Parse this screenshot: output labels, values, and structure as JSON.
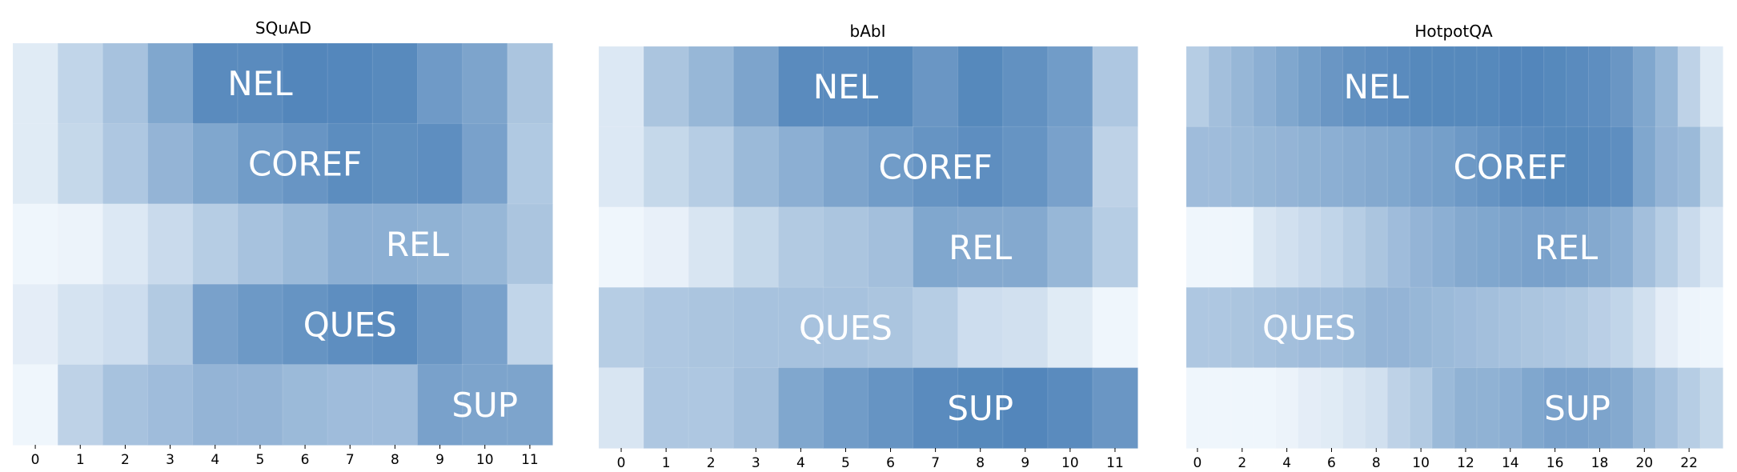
{
  "chart_data": [
    {
      "type": "heatmap",
      "title": "SQuAD",
      "x": [
        0,
        1,
        2,
        3,
        4,
        5,
        6,
        7,
        8,
        9,
        10,
        11
      ],
      "xticks": [
        0,
        1,
        2,
        3,
        4,
        5,
        6,
        7,
        8,
        9,
        10,
        11
      ],
      "rows": [
        {
          "label": "NEL",
          "label_at": 5,
          "values": [
            0.12,
            0.28,
            0.42,
            0.62,
            0.82,
            0.82,
            0.86,
            0.85,
            0.83,
            0.71,
            0.64,
            0.4
          ]
        },
        {
          "label": "COREF",
          "label_at": 6,
          "values": [
            0.12,
            0.26,
            0.38,
            0.52,
            0.62,
            0.7,
            0.75,
            0.81,
            0.79,
            0.8,
            0.66,
            0.37
          ]
        },
        {
          "label": "REL",
          "label_at": 8.5,
          "values": [
            0.04,
            0.06,
            0.14,
            0.24,
            0.34,
            0.42,
            0.48,
            0.56,
            0.56,
            0.54,
            0.5,
            0.4
          ]
        },
        {
          "label": "QUES",
          "label_at": 7,
          "values": [
            0.1,
            0.18,
            0.22,
            0.36,
            0.66,
            0.72,
            0.76,
            0.8,
            0.82,
            0.74,
            0.66,
            0.28
          ]
        },
        {
          "label": "SUP",
          "label_at": 10,
          "values": [
            0.04,
            0.3,
            0.42,
            0.46,
            0.52,
            0.52,
            0.48,
            0.46,
            0.46,
            0.66,
            0.64,
            0.64
          ]
        }
      ]
    },
    {
      "type": "heatmap",
      "title": "bAbI",
      "x": [
        0,
        1,
        2,
        3,
        4,
        5,
        6,
        7,
        8,
        9,
        10,
        11
      ],
      "xticks": [
        0,
        1,
        2,
        3,
        4,
        5,
        6,
        7,
        8,
        9,
        10,
        11
      ],
      "rows": [
        {
          "label": "NEL",
          "label_at": 5,
          "values": [
            0.14,
            0.4,
            0.5,
            0.64,
            0.82,
            0.82,
            0.84,
            0.74,
            0.84,
            0.78,
            0.7,
            0.38
          ]
        },
        {
          "label": "COREF",
          "label_at": 7,
          "values": [
            0.14,
            0.26,
            0.34,
            0.48,
            0.56,
            0.64,
            0.7,
            0.76,
            0.8,
            0.76,
            0.66,
            0.3
          ]
        },
        {
          "label": "REL",
          "label_at": 8,
          "values": [
            0.04,
            0.08,
            0.16,
            0.26,
            0.36,
            0.4,
            0.44,
            0.62,
            0.6,
            0.6,
            0.5,
            0.34
          ]
        },
        {
          "label": "QUES",
          "label_at": 5,
          "values": [
            0.34,
            0.38,
            0.4,
            0.42,
            0.42,
            0.42,
            0.4,
            0.34,
            0.22,
            0.2,
            0.12,
            0.04
          ]
        },
        {
          "label": "SUP",
          "label_at": 8,
          "values": [
            0.16,
            0.38,
            0.38,
            0.44,
            0.62,
            0.7,
            0.76,
            0.82,
            0.84,
            0.86,
            0.82,
            0.74
          ]
        }
      ]
    },
    {
      "type": "heatmap",
      "title": "HotpotQA",
      "x": [
        0,
        1,
        2,
        3,
        4,
        5,
        6,
        7,
        8,
        9,
        10,
        11,
        12,
        13,
        14,
        15,
        16,
        17,
        18,
        19,
        20,
        21,
        22,
        23
      ],
      "xticks": [
        0,
        2,
        4,
        6,
        8,
        10,
        12,
        14,
        16,
        18,
        20,
        22
      ],
      "rows": [
        {
          "label": "NEL",
          "label_at": 8,
          "values": [
            0.34,
            0.44,
            0.5,
            0.56,
            0.62,
            0.68,
            0.74,
            0.78,
            0.8,
            0.82,
            0.84,
            0.84,
            0.84,
            0.84,
            0.86,
            0.86,
            0.84,
            0.82,
            0.8,
            0.74,
            0.62,
            0.5,
            0.3,
            0.12
          ]
        },
        {
          "label": "COREF",
          "label_at": 14,
          "values": [
            0.46,
            0.46,
            0.48,
            0.5,
            0.52,
            0.54,
            0.56,
            0.58,
            0.6,
            0.62,
            0.66,
            0.68,
            0.72,
            0.76,
            0.8,
            0.82,
            0.84,
            0.84,
            0.82,
            0.8,
            0.62,
            0.52,
            0.48,
            0.26
          ]
        },
        {
          "label": "REL",
          "label_at": 16.5,
          "values": [
            0.04,
            0.04,
            0.04,
            0.16,
            0.2,
            0.24,
            0.28,
            0.34,
            0.4,
            0.46,
            0.52,
            0.56,
            0.6,
            0.62,
            0.64,
            0.66,
            0.66,
            0.64,
            0.6,
            0.56,
            0.44,
            0.34,
            0.24,
            0.14
          ]
        },
        {
          "label": "QUES",
          "label_at": 5,
          "values": [
            0.38,
            0.38,
            0.4,
            0.42,
            0.44,
            0.46,
            0.46,
            0.48,
            0.52,
            0.52,
            0.5,
            0.48,
            0.46,
            0.44,
            0.42,
            0.4,
            0.38,
            0.36,
            0.32,
            0.28,
            0.2,
            0.1,
            0.05,
            0.04
          ]
        },
        {
          "label": "SUP",
          "label_at": 17,
          "values": [
            0.04,
            0.04,
            0.04,
            0.04,
            0.06,
            0.1,
            0.12,
            0.16,
            0.2,
            0.3,
            0.36,
            0.48,
            0.54,
            0.54,
            0.56,
            0.62,
            0.66,
            0.66,
            0.64,
            0.6,
            0.5,
            0.42,
            0.34,
            0.26
          ]
        }
      ]
    }
  ],
  "colors": {
    "low": "#f7fbff",
    "high": "#08519c",
    "cmap": "Blues"
  },
  "colorscale_range": [
    0,
    1.25
  ],
  "grid": false,
  "legend": "none"
}
